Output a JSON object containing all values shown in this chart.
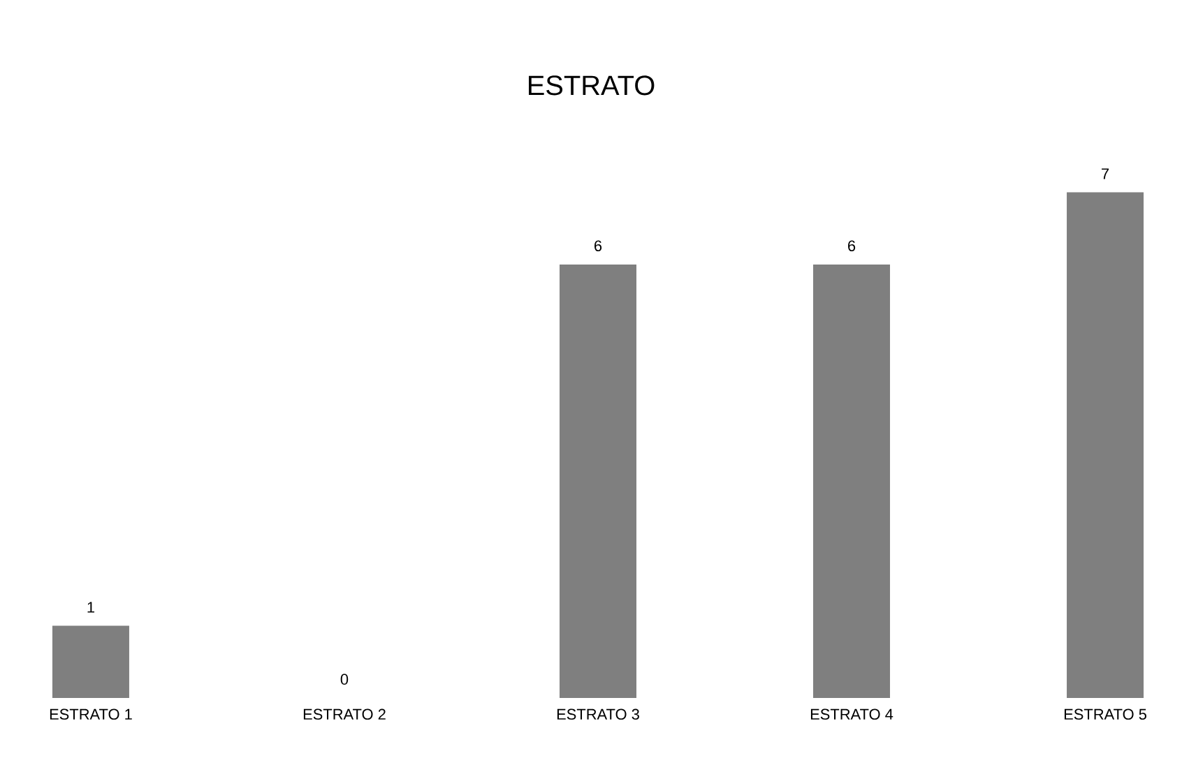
{
  "chart_data": {
    "type": "bar",
    "title": "ESTRATO",
    "categories": [
      "ESTRATO 1",
      "ESTRATO 2",
      "ESTRATO 3",
      "ESTRATO 4",
      "ESTRATO 5"
    ],
    "values": [
      1,
      0,
      6,
      6,
      7
    ],
    "color": "#7f7f7f",
    "data_labels": true
  }
}
